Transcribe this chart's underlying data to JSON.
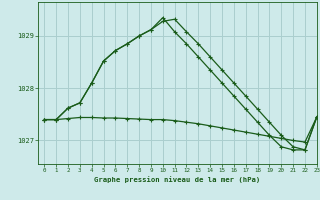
{
  "background_color": "#ceeaea",
  "grid_color": "#aacece",
  "line_color": "#1a5c1a",
  "title": "Graphe pression niveau de la mer (hPa)",
  "xlim": [
    -0.5,
    23
  ],
  "ylim": [
    1026.55,
    1029.65
  ],
  "yticks": [
    1027,
    1028,
    1029
  ],
  "xticks": [
    0,
    1,
    2,
    3,
    4,
    5,
    6,
    7,
    8,
    9,
    10,
    11,
    12,
    13,
    14,
    15,
    16,
    17,
    18,
    19,
    20,
    21,
    22,
    23
  ],
  "s1_x": [
    0,
    1,
    2,
    3,
    4,
    5,
    6,
    7,
    8,
    9,
    10,
    11,
    12,
    13,
    14,
    15,
    16,
    17,
    18,
    19,
    20,
    21,
    22,
    23
  ],
  "s1_y": [
    1027.4,
    1027.4,
    1027.42,
    1027.44,
    1027.44,
    1027.43,
    1027.43,
    1027.42,
    1027.41,
    1027.4,
    1027.4,
    1027.38,
    1027.35,
    1027.32,
    1027.28,
    1027.24,
    1027.2,
    1027.16,
    1027.12,
    1027.08,
    1027.04,
    1027.0,
    1026.97,
    1027.45
  ],
  "s2_x": [
    0,
    1,
    2,
    3,
    4,
    5,
    6,
    7,
    8,
    9,
    10,
    11,
    12,
    13,
    14,
    15,
    16,
    17,
    18,
    19,
    20,
    21,
    22,
    23
  ],
  "s2_y": [
    1027.4,
    1027.4,
    1027.62,
    1027.72,
    1028.1,
    1028.52,
    1028.72,
    1028.85,
    1029.0,
    1029.12,
    1029.28,
    1029.32,
    1029.08,
    1028.85,
    1028.6,
    1028.35,
    1028.1,
    1027.85,
    1027.6,
    1027.35,
    1027.1,
    1026.88,
    1026.82,
    1027.45
  ],
  "s3_x": [
    0,
    1,
    2,
    3,
    4,
    5,
    6,
    7,
    8,
    9,
    10,
    11,
    12,
    13,
    14,
    15,
    16,
    17,
    18,
    19,
    20,
    21,
    22,
    23
  ],
  "s3_y": [
    1027.4,
    1027.4,
    1027.62,
    1027.72,
    1028.1,
    1028.52,
    1028.72,
    1028.85,
    1029.0,
    1029.12,
    1029.35,
    1029.08,
    1028.85,
    1028.6,
    1028.35,
    1028.1,
    1027.85,
    1027.6,
    1027.35,
    1027.1,
    1026.88,
    1026.82,
    1026.82,
    1027.45
  ]
}
